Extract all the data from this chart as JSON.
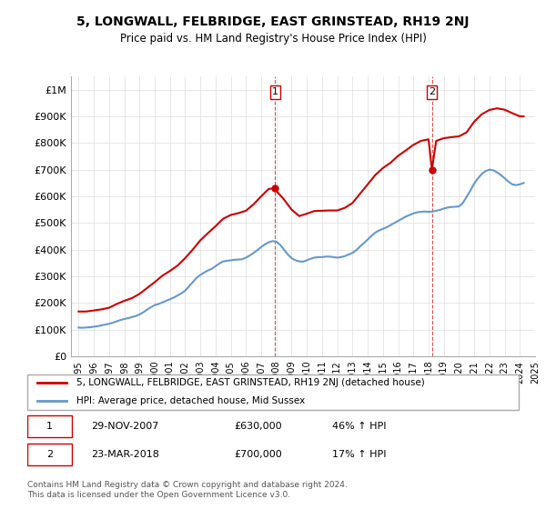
{
  "title": "5, LONGWALL, FELBRIDGE, EAST GRINSTEAD, RH19 2NJ",
  "subtitle": "Price paid vs. HM Land Registry's House Price Index (HPI)",
  "xlabel": "",
  "ylabel": "",
  "ylim": [
    0,
    1050000
  ],
  "yticks": [
    0,
    100000,
    200000,
    300000,
    400000,
    500000,
    600000,
    700000,
    800000,
    900000,
    1000000
  ],
  "ytick_labels": [
    "£0",
    "£100K",
    "£200K",
    "£300K",
    "£400K",
    "£500K",
    "£600K",
    "£700K",
    "£800K",
    "£900K",
    "£1M"
  ],
  "background_color": "#ffffff",
  "grid_color": "#dddddd",
  "sale1_date": 2007.91,
  "sale1_price": 630000,
  "sale1_label": "1",
  "sale2_date": 2018.22,
  "sale2_price": 700000,
  "sale2_label": "2",
  "line_color_property": "#cc0000",
  "line_color_hpi": "#6699cc",
  "legend_label_property": "5, LONGWALL, FELBRIDGE, EAST GRINSTEAD, RH19 2NJ (detached house)",
  "legend_label_hpi": "HPI: Average price, detached house, Mid Sussex",
  "annotation1_date": "29-NOV-2007",
  "annotation1_price": "£630,000",
  "annotation1_change": "46% ↑ HPI",
  "annotation2_date": "23-MAR-2018",
  "annotation2_price": "£700,000",
  "annotation2_change": "17% ↑ HPI",
  "footer": "Contains HM Land Registry data © Crown copyright and database right 2024.\nThis data is licensed under the Open Government Licence v3.0.",
  "hpi_years": [
    1995.0,
    1995.25,
    1995.5,
    1995.75,
    1996.0,
    1996.25,
    1996.5,
    1996.75,
    1997.0,
    1997.25,
    1997.5,
    1997.75,
    1998.0,
    1998.25,
    1998.5,
    1998.75,
    1999.0,
    1999.25,
    1999.5,
    1999.75,
    2000.0,
    2000.25,
    2000.5,
    2000.75,
    2001.0,
    2001.25,
    2001.5,
    2001.75,
    2002.0,
    2002.25,
    2002.5,
    2002.75,
    2003.0,
    2003.25,
    2003.5,
    2003.75,
    2004.0,
    2004.25,
    2004.5,
    2004.75,
    2005.0,
    2005.25,
    2005.5,
    2005.75,
    2006.0,
    2006.25,
    2006.5,
    2006.75,
    2007.0,
    2007.25,
    2007.5,
    2007.75,
    2008.0,
    2008.25,
    2008.5,
    2008.75,
    2009.0,
    2009.25,
    2009.5,
    2009.75,
    2010.0,
    2010.25,
    2010.5,
    2010.75,
    2011.0,
    2011.25,
    2011.5,
    2011.75,
    2012.0,
    2012.25,
    2012.5,
    2012.75,
    2013.0,
    2013.25,
    2013.5,
    2013.75,
    2014.0,
    2014.25,
    2014.5,
    2014.75,
    2015.0,
    2015.25,
    2015.5,
    2015.75,
    2016.0,
    2016.25,
    2016.5,
    2016.75,
    2017.0,
    2017.25,
    2017.5,
    2017.75,
    2018.0,
    2018.25,
    2018.5,
    2018.75,
    2019.0,
    2019.25,
    2019.5,
    2019.75,
    2020.0,
    2020.25,
    2020.5,
    2020.75,
    2021.0,
    2021.25,
    2021.5,
    2021.75,
    2022.0,
    2022.25,
    2022.5,
    2022.75,
    2023.0,
    2023.25,
    2023.5,
    2023.75,
    2024.0,
    2024.25
  ],
  "hpi_values": [
    108000,
    107000,
    108000,
    109000,
    111000,
    113000,
    116000,
    119000,
    122000,
    126000,
    131000,
    136000,
    140000,
    143000,
    147000,
    151000,
    157000,
    165000,
    175000,
    184000,
    192000,
    196000,
    202000,
    208000,
    214000,
    220000,
    228000,
    236000,
    246000,
    262000,
    278000,
    294000,
    305000,
    314000,
    322000,
    328000,
    338000,
    348000,
    356000,
    358000,
    360000,
    362000,
    363000,
    364000,
    370000,
    378000,
    388000,
    398000,
    410000,
    420000,
    428000,
    432000,
    430000,
    418000,
    400000,
    382000,
    368000,
    360000,
    356000,
    355000,
    360000,
    366000,
    370000,
    372000,
    372000,
    374000,
    374000,
    372000,
    370000,
    372000,
    376000,
    382000,
    388000,
    398000,
    412000,
    425000,
    438000,
    452000,
    464000,
    472000,
    478000,
    484000,
    492000,
    500000,
    508000,
    516000,
    524000,
    530000,
    536000,
    540000,
    542000,
    543000,
    542000,
    543000,
    546000,
    549000,
    554000,
    558000,
    560000,
    561000,
    562000,
    575000,
    598000,
    622000,
    648000,
    668000,
    684000,
    695000,
    700000,
    698000,
    690000,
    680000,
    668000,
    655000,
    645000,
    642000,
    645000,
    650000
  ],
  "prop_years": [
    1995.0,
    1995.5,
    1996.0,
    1996.5,
    1997.0,
    1997.5,
    1998.0,
    1998.5,
    1999.0,
    1999.5,
    2000.0,
    2000.5,
    2001.0,
    2001.5,
    2002.0,
    2002.5,
    2003.0,
    2003.5,
    2004.0,
    2004.5,
    2005.0,
    2005.5,
    2006.0,
    2006.5,
    2007.0,
    2007.5,
    2007.91,
    2008.0,
    2008.5,
    2009.0,
    2009.5,
    2010.0,
    2010.5,
    2011.0,
    2011.5,
    2012.0,
    2012.5,
    2013.0,
    2013.5,
    2014.0,
    2014.5,
    2015.0,
    2015.5,
    2016.0,
    2016.5,
    2017.0,
    2017.5,
    2018.0,
    2018.22,
    2018.5,
    2019.0,
    2019.5,
    2020.0,
    2020.5,
    2021.0,
    2021.5,
    2022.0,
    2022.5,
    2023.0,
    2023.5,
    2024.0,
    2024.25
  ],
  "prop_values": [
    168000,
    168000,
    172000,
    176000,
    182000,
    196000,
    208000,
    218000,
    234000,
    256000,
    278000,
    302000,
    320000,
    340000,
    368000,
    400000,
    435000,
    462000,
    488000,
    516000,
    530000,
    537000,
    546000,
    570000,
    600000,
    628000,
    630000,
    620000,
    588000,
    550000,
    526000,
    535000,
    545000,
    546000,
    547000,
    547000,
    557000,
    575000,
    610000,
    645000,
    680000,
    706000,
    726000,
    752000,
    772000,
    793000,
    808000,
    814000,
    700000,
    808000,
    818000,
    822000,
    825000,
    840000,
    880000,
    908000,
    924000,
    930000,
    925000,
    912000,
    900000,
    900000
  ]
}
